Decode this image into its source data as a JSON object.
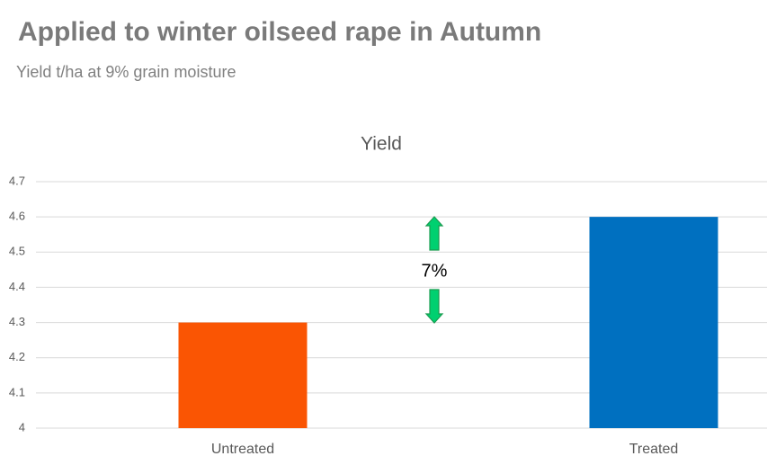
{
  "chart_data": {
    "type": "bar",
    "title": "Applied to winter oilseed rape in Autumn",
    "subtitle": "Yield t/ha at 9% grain moisture",
    "chart_title": "Yield",
    "categories": [
      "Untreated",
      "Treated"
    ],
    "values": [
      4.3,
      4.6
    ],
    "colors": [
      "#fa5503",
      "#0070c0"
    ],
    "ylim": [
      4,
      4.7
    ],
    "yticks": [
      4,
      4.1,
      4.2,
      4.3,
      4.4,
      4.5,
      4.6,
      4.7
    ],
    "grid": true,
    "annotation": "7%"
  }
}
